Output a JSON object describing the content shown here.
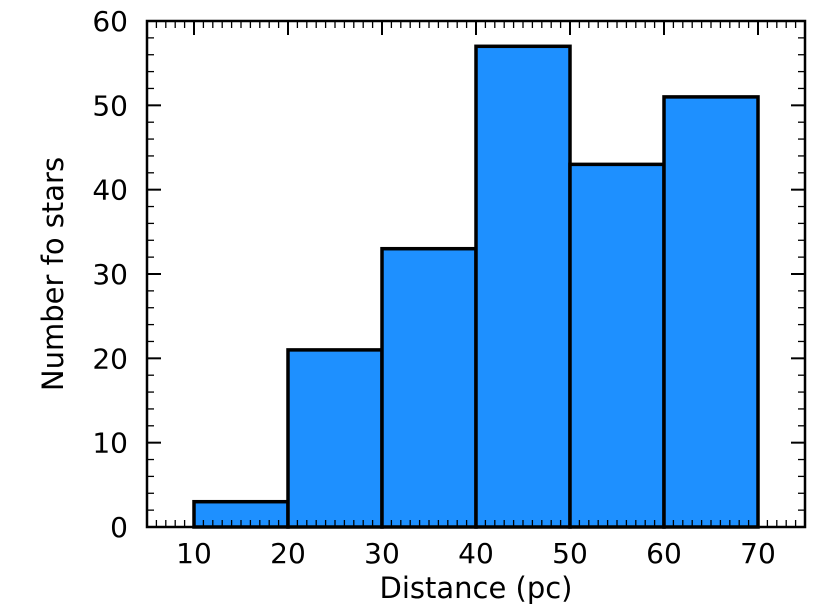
{
  "chart_data": {
    "type": "bar",
    "histogram": true,
    "bins": [
      {
        "x0": 10,
        "x1": 20,
        "value": 3
      },
      {
        "x0": 20,
        "x1": 30,
        "value": 21
      },
      {
        "x0": 30,
        "x1": 40,
        "value": 33
      },
      {
        "x0": 40,
        "x1": 50,
        "value": 57
      },
      {
        "x0": 50,
        "x1": 60,
        "value": 43
      },
      {
        "x0": 60,
        "x1": 70,
        "value": 51
      }
    ],
    "xlabel": "Distance (pc)",
    "ylabel": "Number fo stars",
    "xlim": [
      5,
      75
    ],
    "ylim": [
      0,
      60
    ],
    "x_ticks": [
      "10",
      "20",
      "30",
      "40",
      "50",
      "60",
      "70"
    ],
    "y_ticks": [
      "0",
      "10",
      "20",
      "30",
      "40",
      "50",
      "60"
    ],
    "grid": false,
    "bar_color": "#1e90ff",
    "edge_color": "#000000"
  }
}
